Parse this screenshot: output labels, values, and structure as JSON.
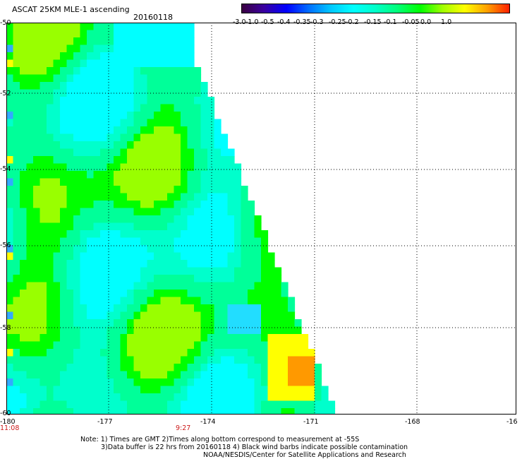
{
  "header": {
    "title": "ASCAT 25KM MLE-1 ascending",
    "date": "20160118"
  },
  "colorbar": {
    "labels": [
      "-3.0",
      "-1.0",
      "-0.5",
      "-0.4",
      "-0.35",
      "-0.3",
      "-0.25",
      "-0.2",
      "-0.15",
      "-0.1",
      "-0.05",
      "0.0",
      "1.0"
    ],
    "colors": [
      "#3a0040",
      "#3a00a0",
      "#0000ff",
      "#006eff",
      "#00c8ff",
      "#00ffff",
      "#00ffc8",
      "#00ff78",
      "#00ff00",
      "#a0ff00",
      "#ffff00",
      "#ffa000",
      "#ff2000"
    ]
  },
  "map": {
    "x_tick_labels": [
      "-180",
      "-177",
      "-174",
      "-171",
      "-168",
      "-16"
    ],
    "y_tick_labels": [
      "-50",
      "-52",
      "-54",
      "-56",
      "-58",
      "-60"
    ],
    "time_labels": [
      "11:08",
      "9:27"
    ],
    "palette": {
      "cyan": "#00ffff",
      "aqua": "#00ffcc",
      "teal": "#00ff99",
      "green": "#00ff00",
      "lime": "#99ff00",
      "yellow": "#ffff00",
      "orange": "#ff9900",
      "blue": "#33aaff"
    }
  },
  "notes": {
    "line1": "Note:  1) Times are GMT   2)Times along bottom correspond to measurement at -55S",
    "line2": "3)Data buffer is 22 hrs from 20160118   4) Black wind barbs indicate possible contamination",
    "line3": "NOAA/NESDIS/Center for Satellite Applications and Research"
  }
}
